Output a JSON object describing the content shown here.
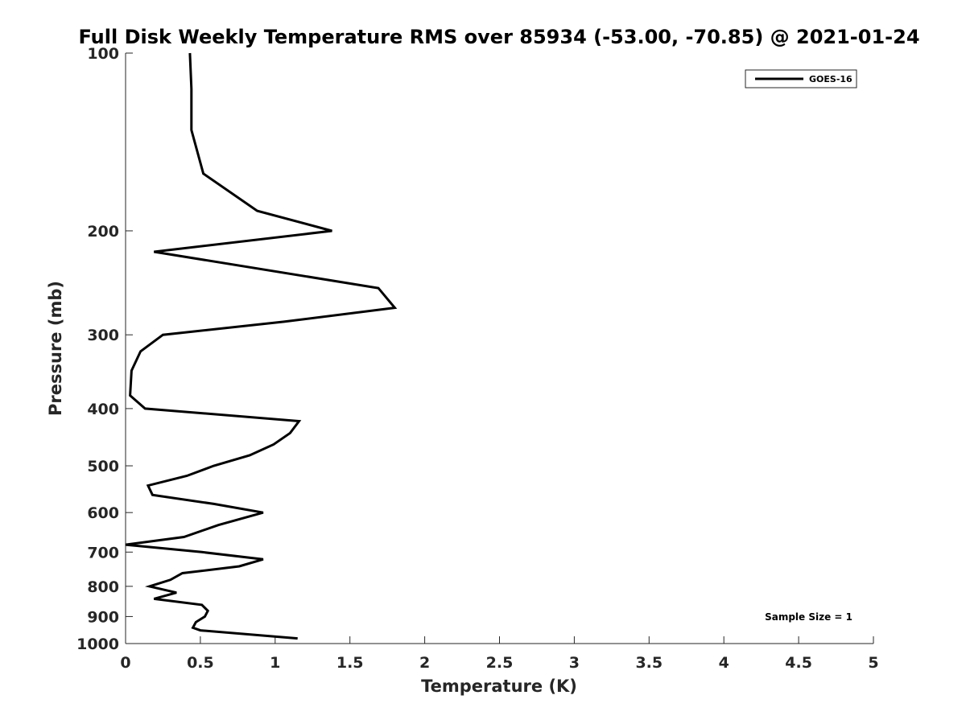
{
  "chart_data": {
    "type": "line",
    "title": "Full Disk Weekly Temperature RMS over 85934 (-53.00, -70.85) @ 2021-01-24",
    "xlabel": "Temperature (K)",
    "ylabel": "Pressure (mb)",
    "xlim": [
      0,
      5
    ],
    "ylim": [
      1000,
      100
    ],
    "y_scale": "log",
    "y_reversed": true,
    "grid": false,
    "legend_position": "top-right",
    "x_ticks": [
      "0",
      "0.5",
      "1",
      "1.5",
      "2",
      "2.5",
      "3",
      "3.5",
      "4",
      "4.5",
      "5"
    ],
    "x_tick_values": [
      0,
      0.5,
      1,
      1.5,
      2,
      2.5,
      3,
      3.5,
      4,
      4.5,
      5
    ],
    "y_ticks": [
      "100",
      "200",
      "300",
      "400",
      "500",
      "600",
      "700",
      "800",
      "900",
      "1000"
    ],
    "y_tick_values": [
      100,
      200,
      300,
      400,
      500,
      600,
      700,
      800,
      900,
      1000
    ],
    "series": [
      {
        "name": "GOES-16",
        "color": "#000000",
        "points": [
          [
            0.43,
            100
          ],
          [
            0.44,
            115
          ],
          [
            0.44,
            135
          ],
          [
            0.52,
            160
          ],
          [
            0.88,
            185
          ],
          [
            1.38,
            200
          ],
          [
            0.19,
            217
          ],
          [
            1.69,
            250
          ],
          [
            1.8,
            270
          ],
          [
            1.06,
            285
          ],
          [
            0.25,
            300
          ],
          [
            0.1,
            320
          ],
          [
            0.04,
            345
          ],
          [
            0.03,
            380
          ],
          [
            0.13,
            400
          ],
          [
            1.16,
            420
          ],
          [
            1.1,
            440
          ],
          [
            0.99,
            460
          ],
          [
            0.83,
            480
          ],
          [
            0.59,
            500
          ],
          [
            0.41,
            520
          ],
          [
            0.15,
            540
          ],
          [
            0.18,
            560
          ],
          [
            0.59,
            580
          ],
          [
            0.92,
            600
          ],
          [
            0.62,
            630
          ],
          [
            0.39,
            660
          ],
          [
            0.0,
            680
          ],
          [
            0.51,
            700
          ],
          [
            0.92,
            720
          ],
          [
            0.76,
            740
          ],
          [
            0.38,
            760
          ],
          [
            0.3,
            780
          ],
          [
            0.16,
            800
          ],
          [
            0.34,
            820
          ],
          [
            0.19,
            840
          ],
          [
            0.51,
            860
          ],
          [
            0.55,
            880
          ],
          [
            0.53,
            900
          ],
          [
            0.47,
            920
          ],
          [
            0.45,
            940
          ],
          [
            0.5,
            950
          ],
          [
            1.15,
            980
          ]
        ]
      }
    ],
    "annotations": [
      "Sample Size = 1"
    ]
  }
}
